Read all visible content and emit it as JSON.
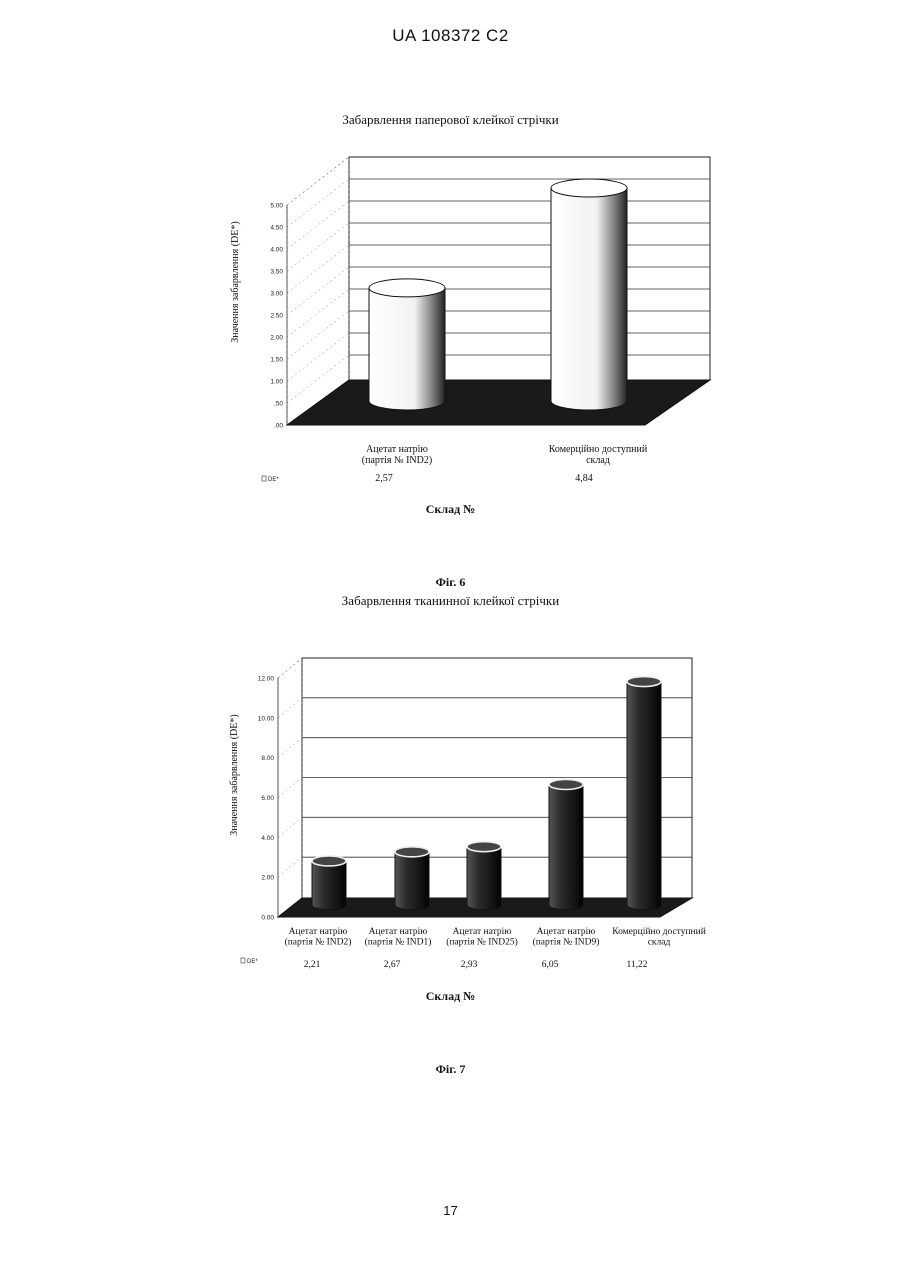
{
  "header": {
    "doc_id": "UA   108372   C2"
  },
  "page_number": "17",
  "chart_data": [
    {
      "type": "bar",
      "title": "Забарвлення паперової клейкої стрічки",
      "ylabel": "Значення забарвлення (DE*)",
      "xlabel": "Склад №",
      "figure_label": "Фіг. 6",
      "row_label": "DE*",
      "ylim": [
        0,
        5
      ],
      "yticks": [
        "5.00",
        "4.50",
        "4.00",
        "3.50",
        "3.00",
        "2.50",
        "2.00",
        "1.50",
        "1.00",
        ".50",
        ".00"
      ],
      "categories": [
        {
          "line1": "Ацетат натрію",
          "line2": "(партія № IND2)"
        },
        {
          "line1": "Комерційно доступний",
          "line2": "склад"
        }
      ],
      "value_labels": [
        "2,57",
        "4,84"
      ],
      "values": [
        2.57,
        4.84
      ],
      "bar_style": "white-cylinder",
      "grid": true
    },
    {
      "type": "bar",
      "title": "Забарвлення тканинної клейкої стрічки",
      "ylabel": "Значення забарвлення (DE*)",
      "xlabel": "Склад №",
      "figure_label": "Фіг. 7",
      "row_label": "DE*",
      "ylim": [
        0,
        12
      ],
      "yticks": [
        "12.00",
        "10.00",
        "8.00",
        "6.00",
        "4.00",
        "2.00",
        "0.00"
      ],
      "categories": [
        {
          "line1": "Ацетат натрію",
          "line2": "(партія № IND2)"
        },
        {
          "line1": "Ацетат натрію",
          "line2": "(партія № IND1)"
        },
        {
          "line1": "Ацетат натрію",
          "line2": "(партія № IND25)"
        },
        {
          "line1": "Ацетат натрію",
          "line2": "(партія № IND9)"
        },
        {
          "line1": "Комерційно доступний",
          "line2": "склад"
        }
      ],
      "value_labels": [
        "2,21",
        "2,67",
        "2,93",
        "6,05",
        "11,22"
      ],
      "values": [
        2.21,
        2.67,
        2.93,
        6.05,
        11.22
      ],
      "bar_style": "dark-cylinder",
      "grid": true
    }
  ]
}
